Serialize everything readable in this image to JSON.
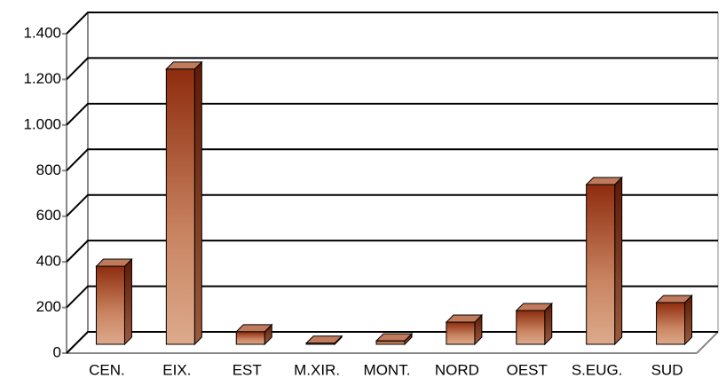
{
  "chart_data": {
    "type": "bar3d",
    "categories": [
      "CEN.",
      "EIX.",
      "EST",
      "M.XIR.",
      "MONT.",
      "NORD",
      "OEST",
      "S.EUG.",
      "SUD"
    ],
    "values": [
      342,
      1206,
      55,
      5,
      15,
      97,
      148,
      700,
      183
    ],
    "color": "#a0401e",
    "ylim": [
      0,
      1400
    ],
    "yticks": [
      0,
      200,
      400,
      600,
      800,
      {
        "value": 1000,
        "label": "1.000"
      },
      {
        "value": 1200,
        "label": "1.200"
      },
      {
        "value": 1400,
        "label": "1.400"
      }
    ],
    "grid": true
  }
}
